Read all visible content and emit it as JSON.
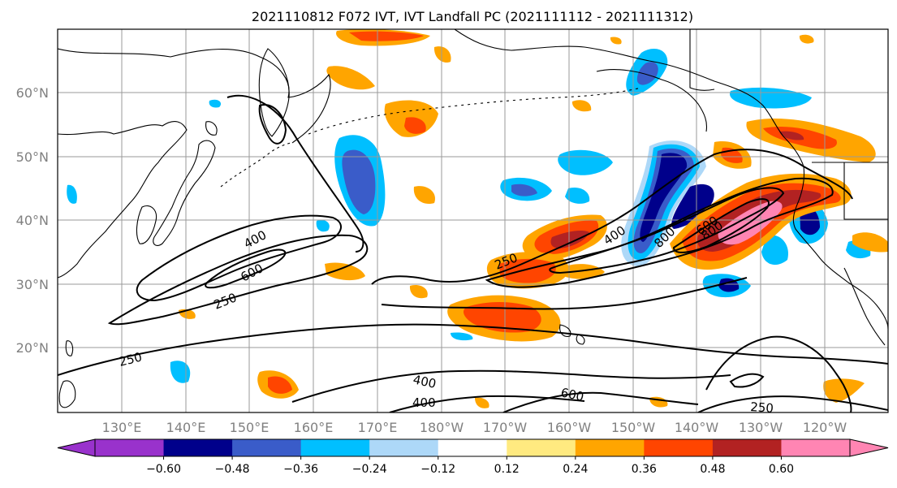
{
  "title": "2021110812 F072 IVT, IVT Landfall PC (2021111112 - 2021111312)",
  "lat_labels": [
    "60°N",
    "50°N",
    "40°N",
    "30°N",
    "20°N"
  ],
  "lon_labels": [
    "130°E",
    "140°E",
    "150°E",
    "160°E",
    "170°E",
    "180°W",
    "170°W",
    "160°W",
    "150°W",
    "140°W",
    "130°W",
    "120°W"
  ],
  "contour_labels": [
    "250",
    "400",
    "600",
    "800",
    "250",
    "400",
    "600",
    "800",
    "250",
    "400",
    "400",
    "600",
    "250"
  ],
  "colorbar": {
    "ticks": [
      "−0.60",
      "−0.48",
      "−0.36",
      "−0.24",
      "−0.12",
      "0.12",
      "0.24",
      "0.36",
      "0.48",
      "0.60"
    ],
    "colors": [
      "#9932cc",
      "#00008b",
      "#3a5cc9",
      "#00bfff",
      "#add8f8",
      "#ffffff",
      "#ffea80",
      "#ffa500",
      "#ff4500",
      "#b22222",
      "#ff85b3"
    ]
  }
}
